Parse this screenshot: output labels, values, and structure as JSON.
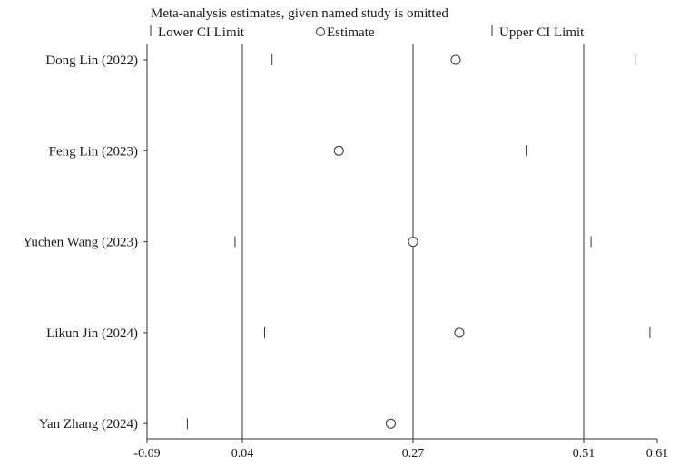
{
  "chart_data": {
    "type": "scatter",
    "title": "Meta-analysis estimates, given named study is omitted",
    "legend": {
      "position": "top",
      "entries": [
        {
          "key": "lower",
          "label": "Lower CI Limit",
          "marker": "tick"
        },
        {
          "key": "estimate",
          "label": "Estimate",
          "marker": "circle"
        },
        {
          "key": "upper",
          "label": "Upper CI Limit",
          "marker": "tick"
        }
      ]
    },
    "x_ticks": [
      {
        "value": -0.09,
        "label": "-0.09"
      },
      {
        "value": 0.04,
        "label": "0.04"
      },
      {
        "value": 0.27,
        "label": "0.27"
      },
      {
        "value": 0.51,
        "label": "0.51"
      },
      {
        "value": 0.61,
        "label": "0.61"
      }
    ],
    "reference_lines": [
      0.04,
      0.27,
      0.51
    ],
    "xlim": [
      -0.09,
      0.61
    ],
    "studies": [
      {
        "name": "Dong Lin  (2022)",
        "lower": 0.08,
        "estimate": 0.33,
        "upper": 0.58
      },
      {
        "name": "Feng Lin (2023)",
        "lower": -0.09,
        "estimate": 0.17,
        "upper": 0.43
      },
      {
        "name": "Yuchen Wang (2023)",
        "lower": 0.03,
        "estimate": 0.27,
        "upper": 0.52
      },
      {
        "name": "Likun Jin  (2024)",
        "lower": 0.07,
        "estimate": 0.335,
        "upper": 0.6
      },
      {
        "name": "Yan Zhang (2024)",
        "lower": -0.035,
        "estimate": 0.24,
        "upper": 0.51
      }
    ],
    "grid": false
  }
}
